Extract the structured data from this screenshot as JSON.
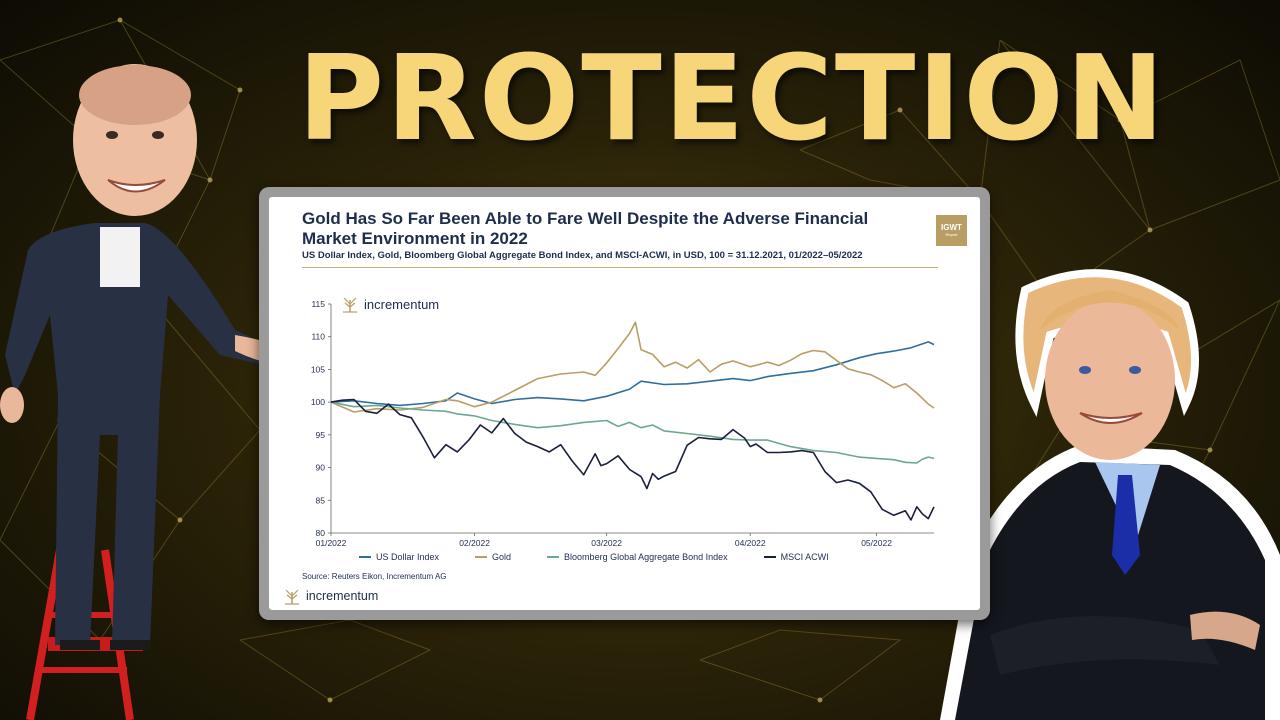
{
  "headline": "PROTECTION",
  "card": {
    "title_line1": "Gold Has So Far Been Able to Fare Well Despite the Adverse Financial",
    "title_line2": "Market Environment in 2022",
    "subtitle": "US Dollar Index, Gold, Bloomberg Global Aggregate Bond Index, and MSCI-ACWI, in USD, 100 = 31.12.2021, 01/2022–05/2022",
    "badge_main": "IGWT",
    "badge_sub": "Report",
    "logo_text": "incrementum",
    "source": "Source: Reuters Eikon, Incrementum AG",
    "footer_logo_text": "incrementum"
  },
  "colors": {
    "usd": "#2f6f9f",
    "gold": "#b89e63",
    "bond": "#6aa98f",
    "msci": "#1a1f3d",
    "headline": "#f7d67a"
  },
  "chart_data": {
    "type": "line",
    "ylim": [
      80,
      115
    ],
    "yticks": [
      80,
      85,
      90,
      95,
      100,
      105,
      110,
      115
    ],
    "xlim": [
      0,
      105
    ],
    "xticks": [
      {
        "x": 0,
        "label": "01/2022"
      },
      {
        "x": 25,
        "label": "02/2022"
      },
      {
        "x": 48,
        "label": "03/2022"
      },
      {
        "x": 73,
        "label": "04/2022"
      },
      {
        "x": 95,
        "label": "05/2022"
      }
    ],
    "series": [
      {
        "name": "US Dollar Index",
        "color": "#2f6f9f",
        "x": [
          0,
          4,
          8,
          12,
          16,
          20,
          22,
          25,
          28,
          32,
          36,
          40,
          44,
          48,
          52,
          54,
          58,
          62,
          66,
          70,
          73,
          76,
          80,
          84,
          88,
          92,
          95,
          98,
          101,
          104,
          105
        ],
        "y": [
          100,
          100.2,
          99.8,
          99.5,
          99.8,
          100.2,
          101.4,
          100.5,
          99.8,
          100.4,
          100.7,
          100.5,
          100.2,
          100.9,
          102,
          103.2,
          102.7,
          102.8,
          103.2,
          103.6,
          103.3,
          103.9,
          104.4,
          104.8,
          105.7,
          106.8,
          107.4,
          107.8,
          108.3,
          109.2,
          108.8
        ]
      },
      {
        "name": "Gold",
        "color": "#b89e63",
        "x": [
          0,
          4,
          8,
          12,
          16,
          20,
          22,
          25,
          28,
          32,
          36,
          40,
          44,
          46,
          48,
          50,
          52,
          53,
          54,
          56,
          58,
          60,
          62,
          64,
          66,
          68,
          70,
          73,
          76,
          78,
          80,
          82,
          84,
          86,
          88,
          90,
          92,
          94,
          96,
          98,
          100,
          102,
          104,
          105
        ],
        "y": [
          100,
          98.5,
          99,
          98.8,
          99.2,
          100.4,
          100.2,
          99.3,
          100,
          101.8,
          103.6,
          104.3,
          104.6,
          104.1,
          106,
          108.2,
          110.5,
          112.2,
          108,
          107.3,
          105.4,
          106.1,
          105.2,
          106.5,
          104.6,
          105.8,
          106.3,
          105.4,
          106.1,
          105.6,
          106.4,
          107.4,
          107.9,
          107.7,
          106.4,
          105.1,
          104.6,
          104.2,
          103.3,
          102.2,
          102.8,
          101.4,
          99.7,
          99.1
        ]
      },
      {
        "name": "Bloomberg Global Aggregate Bond Index",
        "color": "#6aa98f",
        "x": [
          0,
          4,
          8,
          12,
          16,
          20,
          22,
          25,
          28,
          32,
          36,
          40,
          44,
          48,
          50,
          52,
          54,
          56,
          58,
          62,
          66,
          70,
          73,
          76,
          80,
          84,
          88,
          92,
          95,
          98,
          100,
          102,
          103,
          104,
          105
        ],
        "y": [
          100,
          99.3,
          99.5,
          99.1,
          98.8,
          98.6,
          98.2,
          97.9,
          97.2,
          96.6,
          96.1,
          96.4,
          96.9,
          97.2,
          96.3,
          96.9,
          96.1,
          96.5,
          95.6,
          95.2,
          94.8,
          94.3,
          94.2,
          94.2,
          93.2,
          92.6,
          92.3,
          91.6,
          91.4,
          91.2,
          90.8,
          90.7,
          91.3,
          91.6,
          91.4
        ]
      },
      {
        "name": "MSCI ACWI",
        "color": "#1a1f3d",
        "x": [
          0,
          2,
          4,
          6,
          8,
          10,
          12,
          14,
          16,
          18,
          20,
          22,
          24,
          26,
          28,
          30,
          32,
          34,
          36,
          38,
          40,
          42,
          44,
          46,
          47,
          48,
          50,
          52,
          54,
          55,
          56,
          57,
          58,
          60,
          62,
          64,
          66,
          68,
          70,
          72,
          73,
          74,
          76,
          78,
          80,
          82,
          84,
          86,
          88,
          90,
          92,
          94,
          96,
          98,
          100,
          101,
          102,
          103,
          104,
          105
        ],
        "y": [
          100,
          100.3,
          100.4,
          98.6,
          98.3,
          99.7,
          98.1,
          97.6,
          94.7,
          91.5,
          93.5,
          92.4,
          94.2,
          96.5,
          95.3,
          97.5,
          95.2,
          93.9,
          93.2,
          92.4,
          93.5,
          91,
          88.9,
          92.1,
          90.3,
          90.6,
          91.8,
          89.7,
          88.6,
          86.8,
          89.1,
          88.2,
          88.7,
          89.4,
          93.4,
          94.6,
          94.4,
          94.3,
          95.8,
          94.5,
          93.2,
          93.6,
          92.3,
          92.3,
          92.4,
          92.6,
          92.3,
          89.4,
          87.7,
          88.1,
          87.6,
          86.3,
          83.6,
          82.7,
          83.4,
          82,
          84,
          82.9,
          82.2,
          84
        ]
      }
    ]
  }
}
